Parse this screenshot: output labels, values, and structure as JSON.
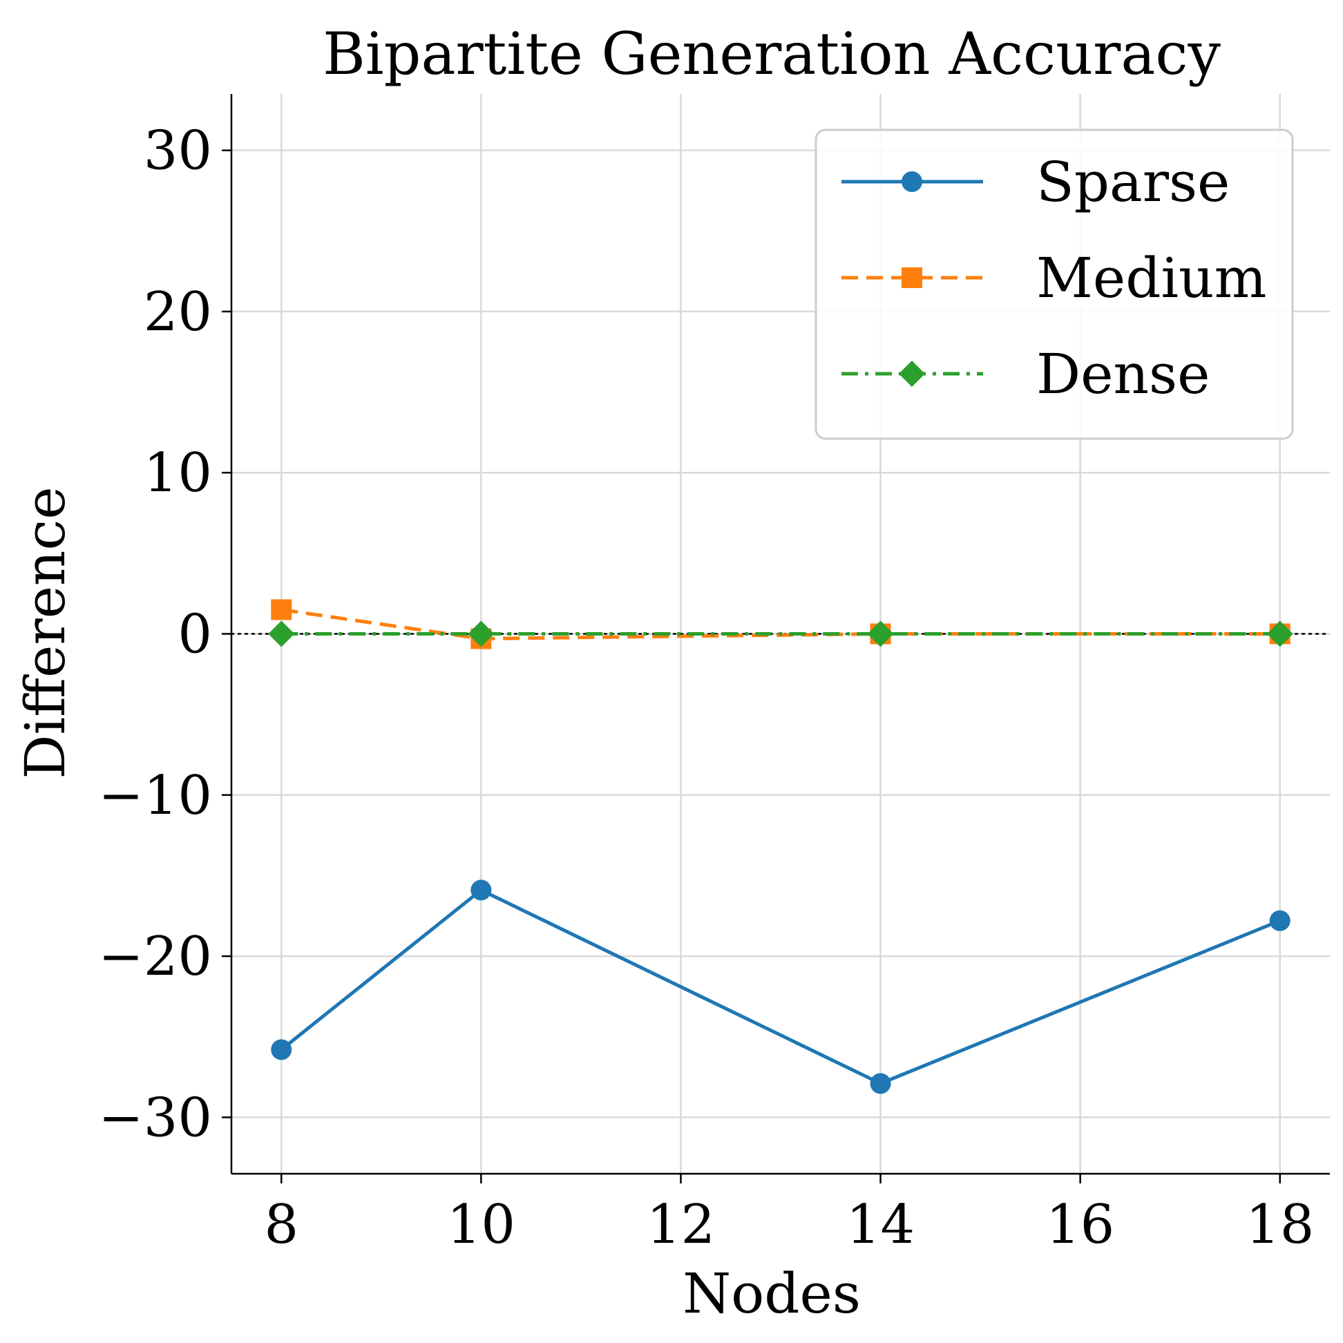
{
  "chart_data": {
    "type": "line",
    "title": "Bipartite Generation Accuracy",
    "xlabel": "Nodes",
    "ylabel": "Difference",
    "x": [
      8,
      10,
      14,
      18
    ],
    "xlim": [
      7.5,
      18.5
    ],
    "ylim": [
      -33.5,
      33.5
    ],
    "xticks": [
      8,
      10,
      12,
      14,
      16,
      18
    ],
    "yticks": [
      -30,
      -20,
      -10,
      0,
      10,
      20,
      30
    ],
    "grid": true,
    "legend": "top-right",
    "reference_line": {
      "y": 0,
      "style": "dotted",
      "color": "#000000"
    },
    "series": [
      {
        "name": "Sparse",
        "values": [
          -25.8,
          -15.9,
          -27.9,
          -17.8
        ],
        "color": "#1f77b4",
        "marker": "circle",
        "linestyle": "solid"
      },
      {
        "name": "Medium",
        "values": [
          1.5,
          -0.3,
          0.0,
          0.0
        ],
        "color": "#ff7f0e",
        "marker": "square",
        "linestyle": "dashed"
      },
      {
        "name": "Dense",
        "values": [
          0.0,
          0.0,
          0.0,
          0.0
        ],
        "color": "#2ca02c",
        "marker": "diamond",
        "linestyle": "dashdot"
      }
    ]
  }
}
